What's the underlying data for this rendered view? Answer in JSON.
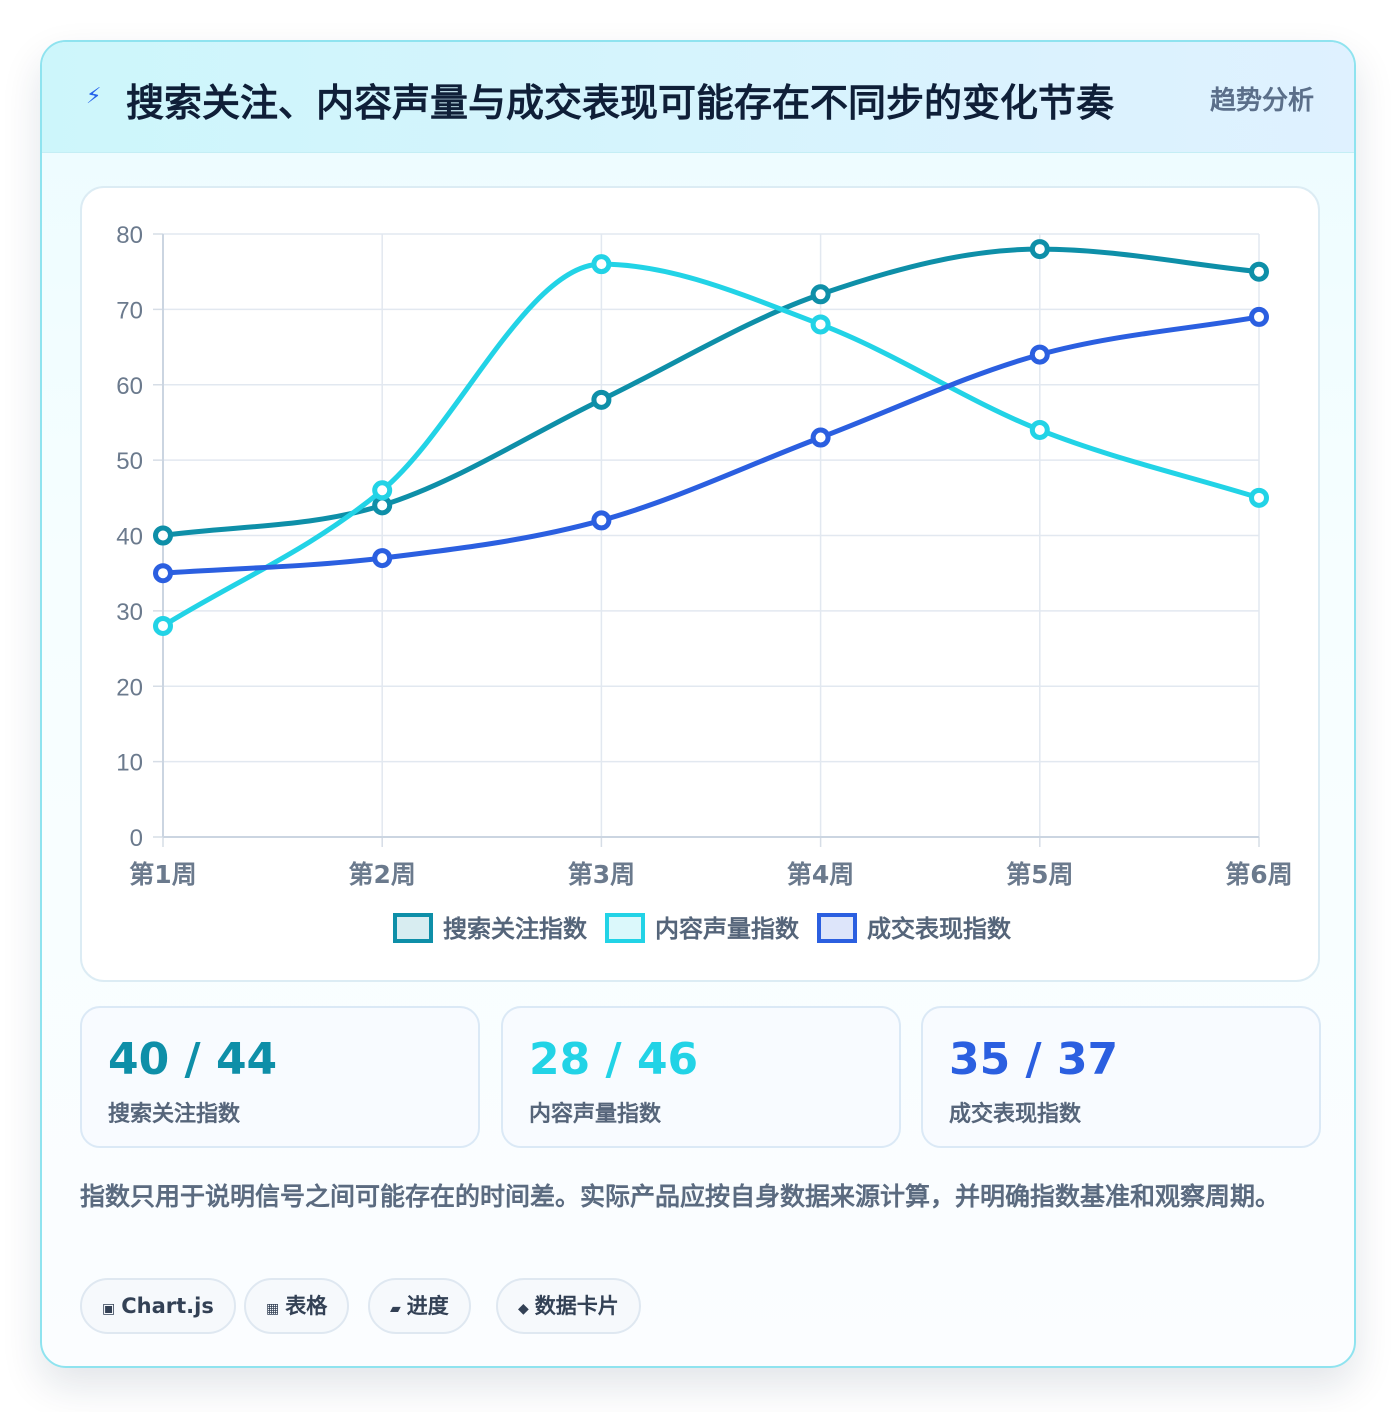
{
  "header": {
    "icon": "lightning-icon",
    "title": "搜索关注、内容声量与成交表现可能存在不同步的变化节奏",
    "badge": "趋势分析"
  },
  "chart_data": {
    "type": "line",
    "categories": [
      "第1周",
      "第2周",
      "第3周",
      "第4周",
      "第5周",
      "第6周"
    ],
    "series": [
      {
        "name": "搜索关注指数",
        "color": "#0e8fa8",
        "values": [
          40,
          44,
          58,
          72,
          78,
          75
        ]
      },
      {
        "name": "内容声量指数",
        "color": "#22d3e6",
        "values": [
          28,
          46,
          76,
          68,
          54,
          45
        ]
      },
      {
        "name": "成交表现指数",
        "color": "#2b5fe0",
        "values": [
          35,
          37,
          42,
          53,
          64,
          69
        ]
      }
    ],
    "ylim": [
      0,
      80
    ],
    "yticks": [
      0,
      10,
      20,
      30,
      40,
      50,
      60,
      70,
      80
    ],
    "grid": true,
    "legend_position": "bottom"
  },
  "stats": [
    {
      "value": "40 / 44",
      "label": "搜索关注指数",
      "color": "#0e8fa8"
    },
    {
      "value": "28 / 46",
      "label": "内容声量指数",
      "color": "#22d3e6"
    },
    {
      "value": "35 / 37",
      "label": "成交表现指数",
      "color": "#2b5fe0"
    }
  ],
  "note": "指数只用于说明信号之间可能存在的时间差。实际产品应按自身数据来源计算，并明确指数基准和观察周期。",
  "tags": [
    {
      "icon": "chart-icon",
      "glyph": "▣",
      "label": "Chart.js"
    },
    {
      "icon": "table-icon",
      "glyph": "▦",
      "label": "表格"
    },
    {
      "icon": "progress-icon",
      "glyph": "▰",
      "label": "进度"
    },
    {
      "icon": "diamond-icon",
      "glyph": "◆",
      "label": "数据卡片"
    }
  ]
}
